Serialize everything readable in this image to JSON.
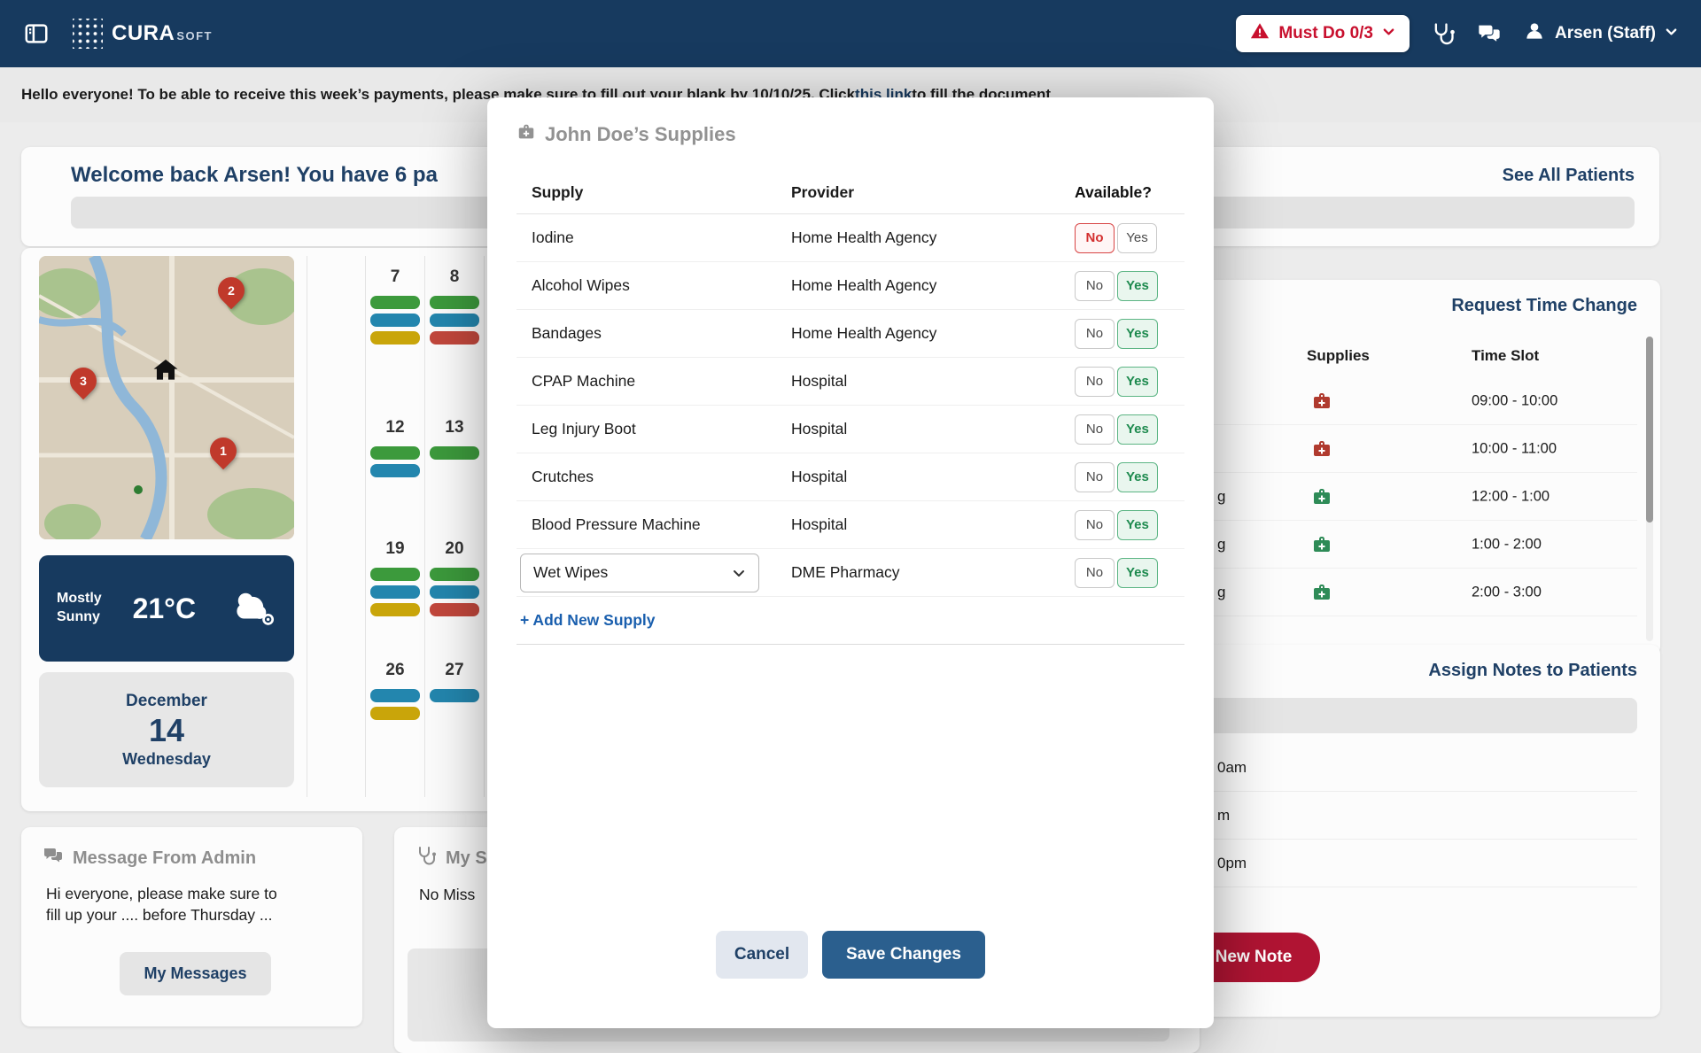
{
  "colors": {
    "navy": "#173A5F",
    "accent_red": "#C8102E",
    "new_note_red": "#B01433",
    "save_blue": "#2B5F8E",
    "link_blue": "#1A5FAE",
    "toggle_yes_green": "#1D8A4E",
    "toggle_no_red": "#D32F2F",
    "pill_green": "#3C9A3C",
    "pill_blue": "#2386AE",
    "pill_yellow": "#C9A50A"
  },
  "navbar": {
    "brand_primary": "CURA",
    "brand_secondary": "SOFT",
    "must_do_label": "Must Do 0/3",
    "user_label": "Arsen (Staff)"
  },
  "announcement": {
    "prefix": "Hello everyone! To be able to receive this week’s payments, please make sure to fill out your blank by 10/10/25. Click ",
    "link": "this link",
    "suffix": " to fill the document"
  },
  "dashboard": {
    "welcome_heading": "Welcome back Arsen! You have 6 pa",
    "see_all_patients": "See All Patients",
    "map": {
      "pins": [
        {
          "label": "1"
        },
        {
          "label": "2"
        },
        {
          "label": "3"
        }
      ]
    },
    "calendar": {
      "cells": [
        {
          "date": "7",
          "pills": [
            "green",
            "blue",
            "yellow"
          ]
        },
        {
          "date": "8",
          "pills": [
            "green",
            "blue",
            "red"
          ]
        },
        {
          "date": "12",
          "pills": [
            "green",
            "blue"
          ]
        },
        {
          "date": "13",
          "pills": [
            "green"
          ]
        },
        {
          "date": "19",
          "pills": [
            "green",
            "blue",
            "yellow"
          ]
        },
        {
          "date": "20",
          "pills": [
            "green",
            "blue",
            "red"
          ]
        },
        {
          "date": "26",
          "pills": [
            "blue",
            "yellow"
          ]
        },
        {
          "date": "27",
          "pills": [
            "blue"
          ]
        }
      ]
    },
    "weather": {
      "condition_line1": "Mostly",
      "condition_line2": "Sunny",
      "temperature": "21°C"
    },
    "date_card": {
      "month": "December",
      "day": "14",
      "weekday": "Wednesday"
    },
    "admin_card": {
      "title": "Message From Admin",
      "body_line1": "Hi everyone, please make sure to",
      "body_line2": "fill up your .... before Thursday ...",
      "button_label": "My Messages"
    },
    "supplies_card": {
      "title": "My Su",
      "body": "No Miss"
    },
    "time_change": {
      "title": "Request Time Change",
      "col_supplies": "Supplies",
      "col_time_slot": "Time Slot",
      "rows": [
        {
          "name_fragment": "",
          "icon": "red",
          "time_slot": "09:00 - 10:00"
        },
        {
          "name_fragment": "",
          "icon": "red",
          "time_slot": "10:00 - 11:00"
        },
        {
          "name_fragment": "g",
          "icon": "green",
          "time_slot": "12:00 - 1:00"
        },
        {
          "name_fragment": "g",
          "icon": "green",
          "time_slot": "1:00 - 2:00"
        },
        {
          "name_fragment": "g",
          "icon": "green",
          "time_slot": "2:00 - 3:00"
        }
      ]
    },
    "notes": {
      "title": "Assign Notes to Patients",
      "rows": [
        "0am",
        "m",
        "0pm"
      ],
      "button_label": "New Note"
    }
  },
  "modal": {
    "title": "John Doe’s Supplies",
    "columns": {
      "supply": "Supply",
      "provider": "Provider",
      "available": "Available?"
    },
    "toggle": {
      "no": "No",
      "yes": "Yes"
    },
    "rows": [
      {
        "supply": "Iodine",
        "provider": "Home Health Agency",
        "available": "no"
      },
      {
        "supply": "Alcohol Wipes",
        "provider": "Home Health Agency",
        "available": "yes"
      },
      {
        "supply": "Bandages",
        "provider": "Home Health Agency",
        "available": "yes"
      },
      {
        "supply": "CPAP Machine",
        "provider": "Hospital",
        "available": "yes"
      },
      {
        "supply": "Leg Injury Boot",
        "provider": "Hospital",
        "available": "yes"
      },
      {
        "supply": "Crutches",
        "provider": "Hospital",
        "available": "yes"
      },
      {
        "supply": "Blood Pressure Machine",
        "provider": "Hospital",
        "available": "yes"
      },
      {
        "supply": "Wet Wipes",
        "provider": "DME Pharmacy",
        "available": "yes",
        "control": "select"
      }
    ],
    "add_new_label": "+ Add New Supply",
    "cancel_label": "Cancel",
    "save_label": "Save Changes"
  }
}
